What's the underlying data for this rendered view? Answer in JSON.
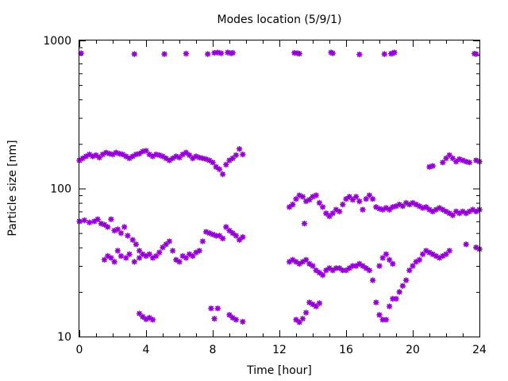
{
  "chart_data": {
    "type": "scatter",
    "title": "Modes location (5/9/1)",
    "xlabel": "Time [hour]",
    "ylabel": "Particle size [nm]",
    "xlim": [
      0,
      24
    ],
    "ylim": [
      10,
      1000
    ],
    "yscale": "log",
    "grid": false,
    "legend": "none",
    "marker_color": "#9400D3",
    "xticks": [
      "0",
      "4",
      "8",
      "12",
      "16",
      "20",
      "24"
    ],
    "yticks": [
      "10",
      "100",
      "1000"
    ],
    "series": [
      {
        "points": [
          [
            0.1,
            820
          ],
          [
            3.3,
            810
          ],
          [
            5.1,
            810
          ],
          [
            6.4,
            815
          ],
          [
            7.7,
            810
          ],
          [
            8.1,
            825
          ],
          [
            8.3,
            830
          ],
          [
            8.5,
            820
          ],
          [
            8.9,
            830
          ],
          [
            9.1,
            820
          ],
          [
            9.2,
            825
          ],
          [
            12.9,
            825
          ],
          [
            13.1,
            820
          ],
          [
            13.2,
            815
          ],
          [
            15.1,
            830
          ],
          [
            15.2,
            820
          ],
          [
            16.8,
            805
          ],
          [
            18.3,
            810
          ],
          [
            18.7,
            815
          ],
          [
            18.8,
            820
          ],
          [
            18.9,
            830
          ],
          [
            23.7,
            815
          ],
          [
            23.8,
            810
          ],
          [
            0.0,
            155
          ],
          [
            0.2,
            160
          ],
          [
            0.4,
            165
          ],
          [
            0.6,
            170
          ],
          [
            0.8,
            165
          ],
          [
            1.0,
            168
          ],
          [
            1.2,
            162
          ],
          [
            1.4,
            170
          ],
          [
            1.6,
            175
          ],
          [
            1.8,
            172
          ],
          [
            2.0,
            170
          ],
          [
            2.2,
            175
          ],
          [
            2.4,
            172
          ],
          [
            2.6,
            170
          ],
          [
            2.8,
            165
          ],
          [
            3.0,
            160
          ],
          [
            3.2,
            165
          ],
          [
            3.4,
            170
          ],
          [
            3.6,
            172
          ],
          [
            3.8,
            178
          ],
          [
            4.0,
            180
          ],
          [
            4.2,
            170
          ],
          [
            4.4,
            165
          ],
          [
            4.6,
            170
          ],
          [
            4.8,
            168
          ],
          [
            5.0,
            165
          ],
          [
            5.2,
            160
          ],
          [
            5.4,
            155
          ],
          [
            5.6,
            160
          ],
          [
            5.8,
            165
          ],
          [
            6.0,
            162
          ],
          [
            6.2,
            170
          ],
          [
            6.4,
            175
          ],
          [
            6.6,
            168
          ],
          [
            6.8,
            160
          ],
          [
            7.0,
            165
          ],
          [
            7.2,
            162
          ],
          [
            7.4,
            160
          ],
          [
            7.6,
            158
          ],
          [
            7.8,
            155
          ],
          [
            8.0,
            150
          ],
          [
            8.2,
            140
          ],
          [
            8.4,
            135
          ],
          [
            8.6,
            125
          ],
          [
            8.8,
            145
          ],
          [
            9.0,
            155
          ],
          [
            9.2,
            160
          ],
          [
            9.4,
            168
          ],
          [
            9.6,
            185
          ],
          [
            9.8,
            170
          ],
          [
            21.0,
            140
          ],
          [
            21.2,
            142
          ],
          [
            21.8,
            150
          ],
          [
            22.0,
            160
          ],
          [
            22.2,
            168
          ],
          [
            22.4,
            160
          ],
          [
            22.6,
            152
          ],
          [
            22.8,
            158
          ],
          [
            23.0,
            155
          ],
          [
            23.2,
            152
          ],
          [
            23.4,
            150
          ],
          [
            23.8,
            155
          ],
          [
            24.0,
            152
          ],
          [
            0.0,
            60
          ],
          [
            0.3,
            61
          ],
          [
            0.6,
            59
          ],
          [
            0.9,
            60
          ],
          [
            1.1,
            62
          ],
          [
            1.3,
            58
          ],
          [
            1.5,
            57
          ],
          [
            1.7,
            55
          ],
          [
            1.9,
            62
          ],
          [
            2.1,
            52
          ],
          [
            2.3,
            53
          ],
          [
            2.5,
            50
          ],
          [
            2.7,
            55
          ],
          [
            2.9,
            48
          ],
          [
            3.2,
            45
          ],
          [
            3.4,
            42
          ],
          [
            3.6,
            38
          ],
          [
            3.8,
            36
          ],
          [
            4.0,
            35
          ],
          [
            4.2,
            36
          ],
          [
            4.4,
            34
          ],
          [
            4.6,
            35
          ],
          [
            4.8,
            37
          ],
          [
            5.0,
            40
          ],
          [
            5.2,
            42
          ],
          [
            5.4,
            44
          ],
          [
            5.6,
            38
          ],
          [
            5.8,
            33
          ],
          [
            6.0,
            32
          ],
          [
            6.2,
            35
          ],
          [
            6.4,
            34
          ],
          [
            6.6,
            36
          ],
          [
            6.8,
            35
          ],
          [
            7.0,
            37
          ],
          [
            7.2,
            38
          ],
          [
            7.4,
            44
          ],
          [
            7.6,
            51
          ],
          [
            7.8,
            50
          ],
          [
            8.0,
            49
          ],
          [
            8.2,
            48
          ],
          [
            8.4,
            48
          ],
          [
            8.6,
            46
          ],
          [
            8.8,
            55
          ],
          [
            9.0,
            52
          ],
          [
            9.2,
            50
          ],
          [
            9.4,
            48
          ],
          [
            9.6,
            45
          ],
          [
            9.8,
            47
          ],
          [
            1.5,
            33
          ],
          [
            1.7,
            35
          ],
          [
            1.9,
            34
          ],
          [
            2.1,
            32
          ],
          [
            2.3,
            38
          ],
          [
            2.5,
            35
          ],
          [
            2.8,
            34
          ],
          [
            3.0,
            36
          ],
          [
            3.3,
            32
          ],
          [
            3.6,
            34
          ],
          [
            12.6,
            75
          ],
          [
            12.8,
            78
          ],
          [
            13.0,
            85
          ],
          [
            13.2,
            90
          ],
          [
            13.4,
            88
          ],
          [
            13.6,
            82
          ],
          [
            13.8,
            84
          ],
          [
            14.0,
            88
          ],
          [
            14.2,
            90
          ],
          [
            14.4,
            80
          ],
          [
            14.6,
            75
          ],
          [
            14.8,
            68
          ],
          [
            15.0,
            65
          ],
          [
            15.2,
            68
          ],
          [
            15.4,
            72
          ],
          [
            15.6,
            70
          ],
          [
            15.8,
            78
          ],
          [
            16.0,
            85
          ],
          [
            16.2,
            88
          ],
          [
            16.4,
            84
          ],
          [
            16.6,
            88
          ],
          [
            16.8,
            82
          ],
          [
            17.0,
            72
          ],
          [
            17.2,
            85
          ],
          [
            17.4,
            90
          ],
          [
            17.6,
            85
          ],
          [
            17.8,
            75
          ],
          [
            18.0,
            73
          ],
          [
            18.2,
            72
          ],
          [
            18.4,
            74
          ],
          [
            18.6,
            72
          ],
          [
            18.8,
            75
          ],
          [
            19.0,
            76
          ],
          [
            19.2,
            78
          ],
          [
            19.4,
            76
          ],
          [
            19.6,
            80
          ],
          [
            19.8,
            78
          ],
          [
            20.0,
            80
          ],
          [
            20.2,
            78
          ],
          [
            20.4,
            76
          ],
          [
            20.6,
            74
          ],
          [
            20.8,
            75
          ],
          [
            21.0,
            72
          ],
          [
            21.2,
            70
          ],
          [
            21.4,
            72
          ],
          [
            21.6,
            74
          ],
          [
            21.8,
            72
          ],
          [
            22.0,
            70
          ],
          [
            22.2,
            68
          ],
          [
            22.4,
            66
          ],
          [
            22.6,
            70
          ],
          [
            22.8,
            68
          ],
          [
            23.0,
            70
          ],
          [
            23.2,
            68
          ],
          [
            23.4,
            70
          ],
          [
            23.6,
            72
          ],
          [
            23.8,
            70
          ],
          [
            24.0,
            72
          ],
          [
            13.5,
            58
          ],
          [
            12.6,
            32
          ],
          [
            12.8,
            33
          ],
          [
            13.0,
            32
          ],
          [
            13.2,
            31
          ],
          [
            13.4,
            32
          ],
          [
            13.6,
            33
          ],
          [
            13.8,
            31
          ],
          [
            14.0,
            30
          ],
          [
            14.2,
            28
          ],
          [
            14.4,
            27
          ],
          [
            14.6,
            26
          ],
          [
            14.8,
            28
          ],
          [
            15.0,
            29
          ],
          [
            15.2,
            28
          ],
          [
            15.4,
            29
          ],
          [
            15.6,
            29
          ],
          [
            15.8,
            28
          ],
          [
            16.0,
            28
          ],
          [
            16.2,
            29
          ],
          [
            16.4,
            30
          ],
          [
            16.6,
            30
          ],
          [
            16.8,
            31
          ],
          [
            17.0,
            30
          ],
          [
            17.2,
            29
          ],
          [
            17.4,
            28
          ],
          [
            17.6,
            24
          ],
          [
            17.8,
            17
          ],
          [
            18.0,
            14
          ],
          [
            18.2,
            13
          ],
          [
            18.4,
            13
          ],
          [
            18.6,
            16
          ],
          [
            18.8,
            18
          ],
          [
            19.0,
            18
          ],
          [
            19.2,
            20
          ],
          [
            19.4,
            22
          ],
          [
            19.6,
            24
          ],
          [
            19.8,
            28
          ],
          [
            20.0,
            30
          ],
          [
            20.2,
            32
          ],
          [
            20.4,
            33
          ],
          [
            20.6,
            36
          ],
          [
            20.8,
            38
          ],
          [
            21.0,
            37
          ],
          [
            21.2,
            36
          ],
          [
            21.4,
            35
          ],
          [
            21.6,
            34
          ],
          [
            21.8,
            35
          ],
          [
            22.0,
            36
          ],
          [
            22.2,
            38
          ],
          [
            23.2,
            42
          ],
          [
            23.8,
            40
          ],
          [
            24.0,
            39
          ],
          [
            18.0,
            30
          ],
          [
            18.2,
            34
          ],
          [
            18.4,
            36
          ],
          [
            18.6,
            33
          ],
          [
            18.8,
            31
          ],
          [
            3.6,
            14.3
          ],
          [
            3.8,
            13.6
          ],
          [
            4.0,
            13.1
          ],
          [
            4.2,
            13.4
          ],
          [
            4.4,
            13.0
          ],
          [
            7.9,
            15.5
          ],
          [
            8.1,
            13.2
          ],
          [
            8.3,
            15.5
          ],
          [
            9.0,
            14.0
          ],
          [
            9.2,
            13.4
          ],
          [
            9.4,
            13.0
          ],
          [
            9.8,
            12.6
          ],
          [
            13.0,
            13.0
          ],
          [
            13.2,
            12.5
          ],
          [
            13.4,
            13.2
          ],
          [
            13.6,
            14.5
          ],
          [
            13.8,
            17.0
          ],
          [
            14.0,
            16.5
          ],
          [
            14.2,
            16.0
          ],
          [
            14.4,
            16.8
          ]
        ]
      }
    ]
  }
}
